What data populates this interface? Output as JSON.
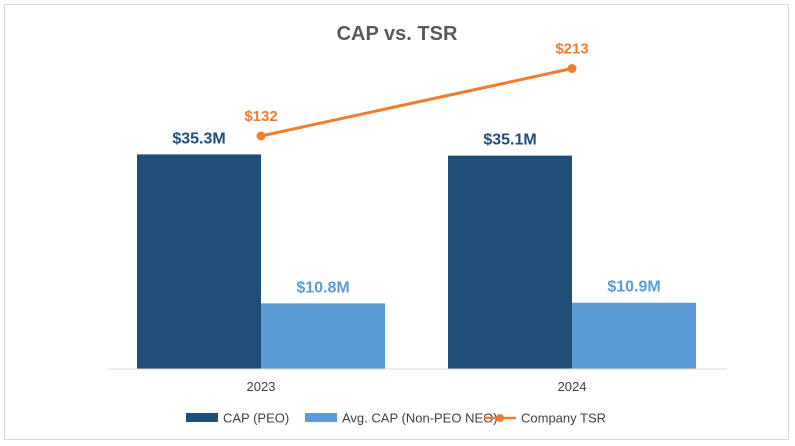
{
  "chart_data": {
    "type": "bar",
    "title": "CAP vs. TSR",
    "categories": [
      "2023",
      "2024"
    ],
    "series": [
      {
        "name": "CAP (PEO)",
        "values": [
          35.3,
          35.1
        ],
        "labels": [
          "$35.3M",
          "$35.1M"
        ],
        "color": "#1f4e79",
        "kind": "bar"
      },
      {
        "name": "Avg. CAP (Non-PEO NEO)",
        "values": [
          10.8,
          10.9
        ],
        "labels": [
          "$10.8M",
          "$10.9M"
        ],
        "color": "#5b9bd5",
        "kind": "bar"
      },
      {
        "name": "Company TSR",
        "values": [
          132,
          213
        ],
        "labels": [
          "$132",
          "$213"
        ],
        "color": "#ed7d31",
        "kind": "line"
      }
    ],
    "ylim_bar": [
      0,
      50
    ],
    "ylim_line": [
      0,
      250
    ],
    "xlabel": "",
    "ylabel": "",
    "grid": false,
    "legend": "bottom"
  }
}
